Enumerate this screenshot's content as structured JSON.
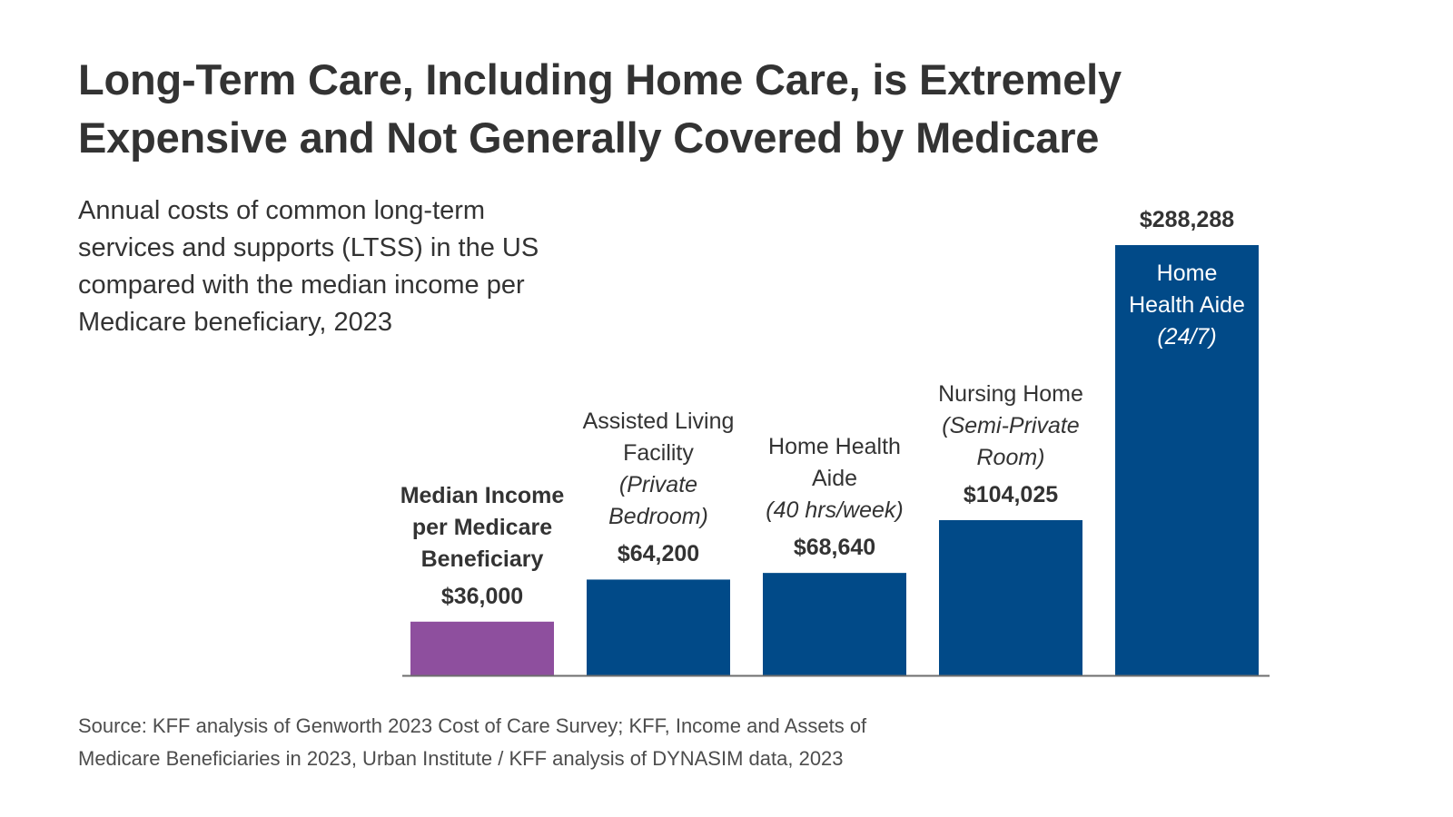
{
  "title": {
    "line1": "Long-Term Care, Including Home Care, is Extremely",
    "line2": "Expensive and Not Generally Covered by Medicare"
  },
  "subtitle": {
    "line1": "Annual costs of common long-term",
    "line2": "services and supports (LTSS) in the US",
    "line3": "compared with the median income per",
    "line4": "Medicare beneficiary, 2023"
  },
  "source": {
    "line1": "Source: KFF analysis of Genworth 2023 Cost of Care Survey; KFF, Income and Assets of",
    "line2": "Medicare Beneficiaries in 2023, Urban Institute / KFF analysis of DYNASIM data, 2023"
  },
  "colors": {
    "median_bar": "#8e4f9e",
    "cost_bar": "#014a88",
    "axis": "#6e6e6e"
  },
  "chart_data": {
    "type": "bar",
    "title": "Long-Term Care, Including Home Care, is Extremely Expensive and Not Generally Covered by Medicare",
    "subtitle": "Annual costs of common long-term services and supports (LTSS) in the US compared with the median income per Medicare beneficiary, 2023",
    "xlabel": "",
    "ylabel": "",
    "ylim": [
      0,
      288288
    ],
    "grid": false,
    "categories": [
      "Median Income per Medicare Beneficiary",
      "Assisted Living Facility (Private Bedroom)",
      "Home Health Aide (40 hrs/week)",
      "Nursing Home (Semi-Private Room)",
      "Home Health Aide (24/7)"
    ],
    "values": [
      36000,
      64200,
      68640,
      104025,
      288288
    ],
    "value_labels": [
      "$36,000",
      "$64,200",
      "$68,640",
      "$104,025",
      "$288,288"
    ],
    "bars": [
      {
        "label_lines": [
          "Median Income",
          "per Medicare",
          "Beneficiary"
        ],
        "italic_lines": [],
        "emphasis": "bold",
        "label_position": "above",
        "color": "#8e4f9e"
      },
      {
        "label_lines": [
          "Assisted Living",
          "Facility"
        ],
        "italic_lines": [
          "(Private",
          "Bedroom)"
        ],
        "emphasis": "normal",
        "label_position": "above",
        "color": "#014a88"
      },
      {
        "label_lines": [
          "Home Health",
          "Aide"
        ],
        "italic_lines": [
          "(40 hrs/week)"
        ],
        "emphasis": "normal",
        "label_position": "above",
        "color": "#014a88"
      },
      {
        "label_lines": [
          "Nursing Home"
        ],
        "italic_lines": [
          "(Semi-Private",
          "Room)"
        ],
        "emphasis": "normal",
        "label_position": "above",
        "color": "#014a88"
      },
      {
        "label_lines": [
          "Home",
          "Health Aide"
        ],
        "italic_lines": [
          "(24/7)"
        ],
        "emphasis": "normal",
        "label_position": "inside",
        "color": "#014a88"
      }
    ]
  }
}
